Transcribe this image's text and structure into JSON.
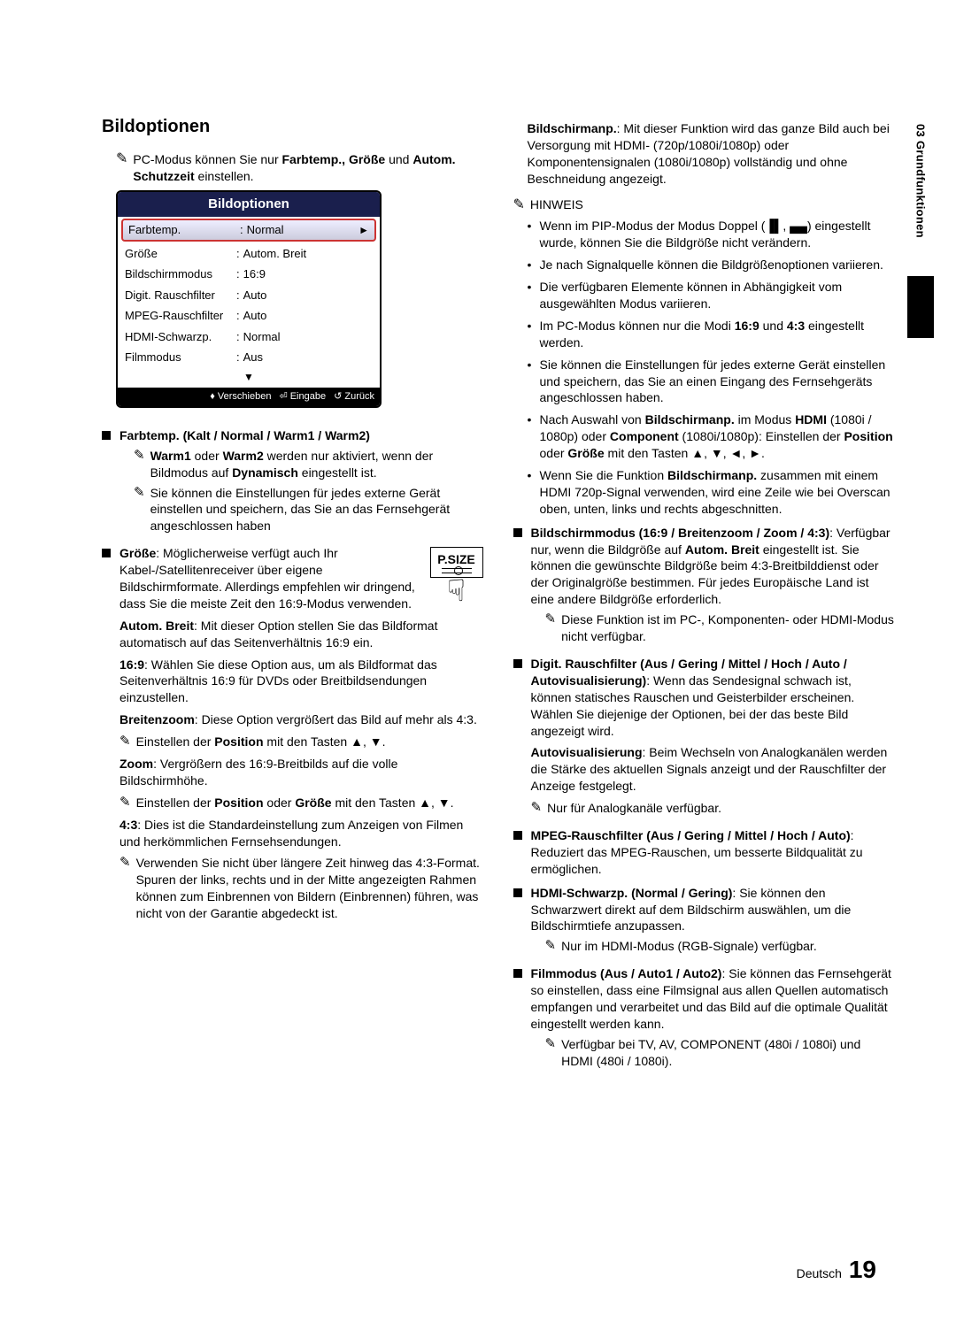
{
  "tab_label": "03  Grundfunktionen",
  "section_title": "Bildoptionen",
  "intro_note": "PC-Modus können Sie nur <b>Farbtemp., Größe</b> und <b>Autom. Schutzzeit</b> einstellen.",
  "osd": {
    "title": "Bildoptionen",
    "rows": [
      {
        "k": "Farbtemp.",
        "v": "Normal",
        "selected": true,
        "arrow": "►"
      },
      {
        "k": "Größe",
        "v": "Autom. Breit"
      },
      {
        "k": "Bildschirmmodus",
        "v": "16:9"
      },
      {
        "k": "Digit. Rauschfilter",
        "v": "Auto"
      },
      {
        "k": "MPEG-Rauschfilter",
        "v": "Auto"
      },
      {
        "k": "HDMI-Schwarzp.",
        "v": "Normal"
      },
      {
        "k": "Filmmodus",
        "v": "Aus"
      }
    ],
    "down": "▼",
    "foot_move": "Verschieben",
    "foot_enter": "Eingabe",
    "foot_return": "Zurück"
  },
  "left": {
    "farbtemp_heading": "Farbtemp. (Kalt / Normal / Warm1 / Warm2)",
    "farbtemp_n1": "<b>Warm1</b> oder <b>Warm2</b> werden nur aktiviert, wenn der Bildmodus auf <b>Dynamisch</b> eingestellt ist.",
    "farbtemp_n2": "Sie können die Einstellungen für jedes externe Gerät einstellen und speichern, das Sie an das Fernsehgerät angeschlossen haben",
    "psize_label": "P.SIZE",
    "groesse_intro": "<b>Größe</b>: Möglicherweise verfügt auch Ihr Kabel-/Satellitenreceiver über eigene Bildschirmformate. Allerdings empfehlen wir dringend, dass Sie die meiste Zeit den 16:9-Modus verwenden.",
    "auto_breit": "<b>Autom. Breit</b>: Mit dieser Option stellen Sie das Bildformat automatisch auf das Seitenverhältnis 16:9 ein.",
    "r169": "<b>16:9</b>: Wählen Sie diese Option aus, um als Bildformat das Seitenverhältnis 16:9 für DVDs oder Breitbildsendungen einzustellen.",
    "breitenzoom": "<b>Breitenzoom</b>: Diese Option vergrößert das Bild auf mehr als 4:3.",
    "breitenzoom_note": "Einstellen der <b>Position</b> mit den Tasten ▲, ▼.",
    "zoom": "<b>Zoom</b>: Vergrößern des 16:9-Breitbilds auf die volle Bildschirmhöhe.",
    "zoom_note": "Einstellen der <b>Position</b> oder <b>Größe</b> mit den Tasten ▲, ▼.",
    "r43": "<b>4:3</b>: Dies ist die Standardeinstellung zum Anzeigen von Filmen und herkömmlichen Fernsehsendungen.",
    "r43_note": "Verwenden Sie nicht über längere Zeit hinweg das 4:3-Format. Spuren der links, rechts und in der Mitte angezeigten Rahmen können zum Einbrennen von Bildern (Einbrennen) führen, was nicht von der Garantie abgedeckt ist."
  },
  "right": {
    "bildschirmanp": "<b>Bildschirmanp.</b>: Mit dieser Funktion wird das ganze Bild auch bei Versorgung mit HDMI- (720p/1080i/1080p) oder Komponentensignalen (1080i/1080p) vollständig und ohne Beschneidung angezeigt.",
    "hinweis_label": "HINWEIS",
    "hinweis": [
      "Wenn im PIP-Modus der Modus Doppel (<b>▐▌</b>, <b>▄▄</b>) eingestellt wurde, können Sie die Bildgröße nicht verändern.",
      "Je nach Signalquelle können die Bildgrößenoptionen variieren.",
      "Die verfügbaren Elemente können in Abhängigkeit vom ausgewählten Modus variieren.",
      "Im PC-Modus können nur die Modi <b>16:9</b> und <b>4:3</b> eingestellt werden.",
      "Sie können die Einstellungen für jedes externe Gerät einstellen und speichern, das Sie an einen Eingang des Fernsehgeräts angeschlossen haben.",
      "Nach Auswahl von <b>Bildschirmanp.</b> im Modus <b>HDMI</b> (1080i / 1080p) oder <b>Component</b> (1080i/1080p): Einstellen der <b>Position</b> oder <b>Größe</b> mit den Tasten ▲, ▼, ◄, ►.",
      "Wenn Sie die Funktion <b>Bildschirmanp.</b> zusammen mit einem HDMI 720p-Signal verwenden, wird eine Zeile wie bei Overscan oben, unten, links und rechts abgeschnitten."
    ],
    "bildschirmmodus": "<b>Bildschirmmodus (16:9 / Breitenzoom / Zoom / 4:3)</b>: Verfügbar nur, wenn die Bildgröße auf <b>Autom. Breit</b> eingestellt ist. Sie können die gewünschte Bildgröße beim 4:3-Breitbilddienst oder der Originalgröße bestimmen. Für jedes Europäische Land ist eine andere Bildgröße erforderlich.",
    "bildschirmmodus_note": "Diese Funktion ist im PC-, Komponenten- oder HDMI-Modus nicht verfügbar.",
    "digit": "<b>Digit. Rauschfilter (Aus / Gering / Mittel / Hoch / Auto / Autovisualisierung)</b>: Wenn das Sendesignal schwach ist, können statisches Rauschen und Geisterbilder erscheinen. Wählen Sie diejenige der Optionen, bei der das beste Bild angezeigt wird.",
    "autovis": "<b>Autovisualisierung</b>: Beim Wechseln von Analogkanälen werden die Stärke des aktuellen Signals anzeigt und der Rauschfilter der Anzeige festgelegt.",
    "autovis_note": "Nur für Analogkanäle verfügbar.",
    "mpeg": "<b>MPEG-Rauschfilter (Aus / Gering / Mittel / Hoch / Auto)</b>: Reduziert das MPEG-Rauschen, um besserte Bildqualität zu ermöglichen.",
    "hdmi": "<b>HDMI-Schwarzp. (Normal / Gering)</b>: Sie können den Schwarzwert direkt auf dem Bildschirm auswählen, um die Bildschirmtiefe anzupassen.",
    "hdmi_note": "Nur im HDMI-Modus (RGB-Signale) verfügbar.",
    "film": "<b>Filmmodus (Aus / Auto1 / Auto2)</b>: Sie können das Fernsehgerät so einstellen, dass eine Filmsignal aus allen Quellen automatisch empfangen und verarbeitet und das Bild auf die optimale Qualität eingestellt werden kann.",
    "film_note": "Verfügbar bei TV, AV, COMPONENT (480i / 1080i) und HDMI (480i / 1080i)."
  },
  "footer_lang": "Deutsch",
  "footer_page": "19"
}
